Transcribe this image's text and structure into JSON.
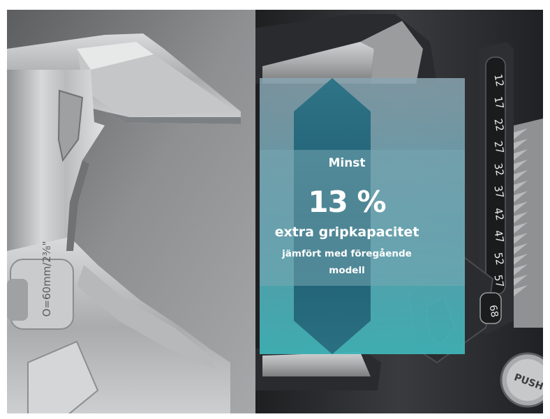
{
  "overlay": {
    "line1": "Minst",
    "line2": "13 %",
    "line3": "extra gripkapacitet",
    "line4": "jämfört med föregående",
    "line5": "modell"
  },
  "left_wrench": {
    "engraving": "O=60mm/2⅜\""
  },
  "right_wrench": {
    "scale_marks": [
      "12",
      "17",
      "22",
      "27",
      "32",
      "37",
      "42",
      "47",
      "52",
      "57"
    ],
    "size_badge": "68",
    "push_button": "PUSH"
  },
  "colors": {
    "overlay_top": "#7fa7b6",
    "overlay_bottom": "#4fb3b8",
    "arrow_dark": "#1f5f73",
    "steel_light": "#c9cbcc",
    "steel_dark": "#2a2a2c"
  }
}
